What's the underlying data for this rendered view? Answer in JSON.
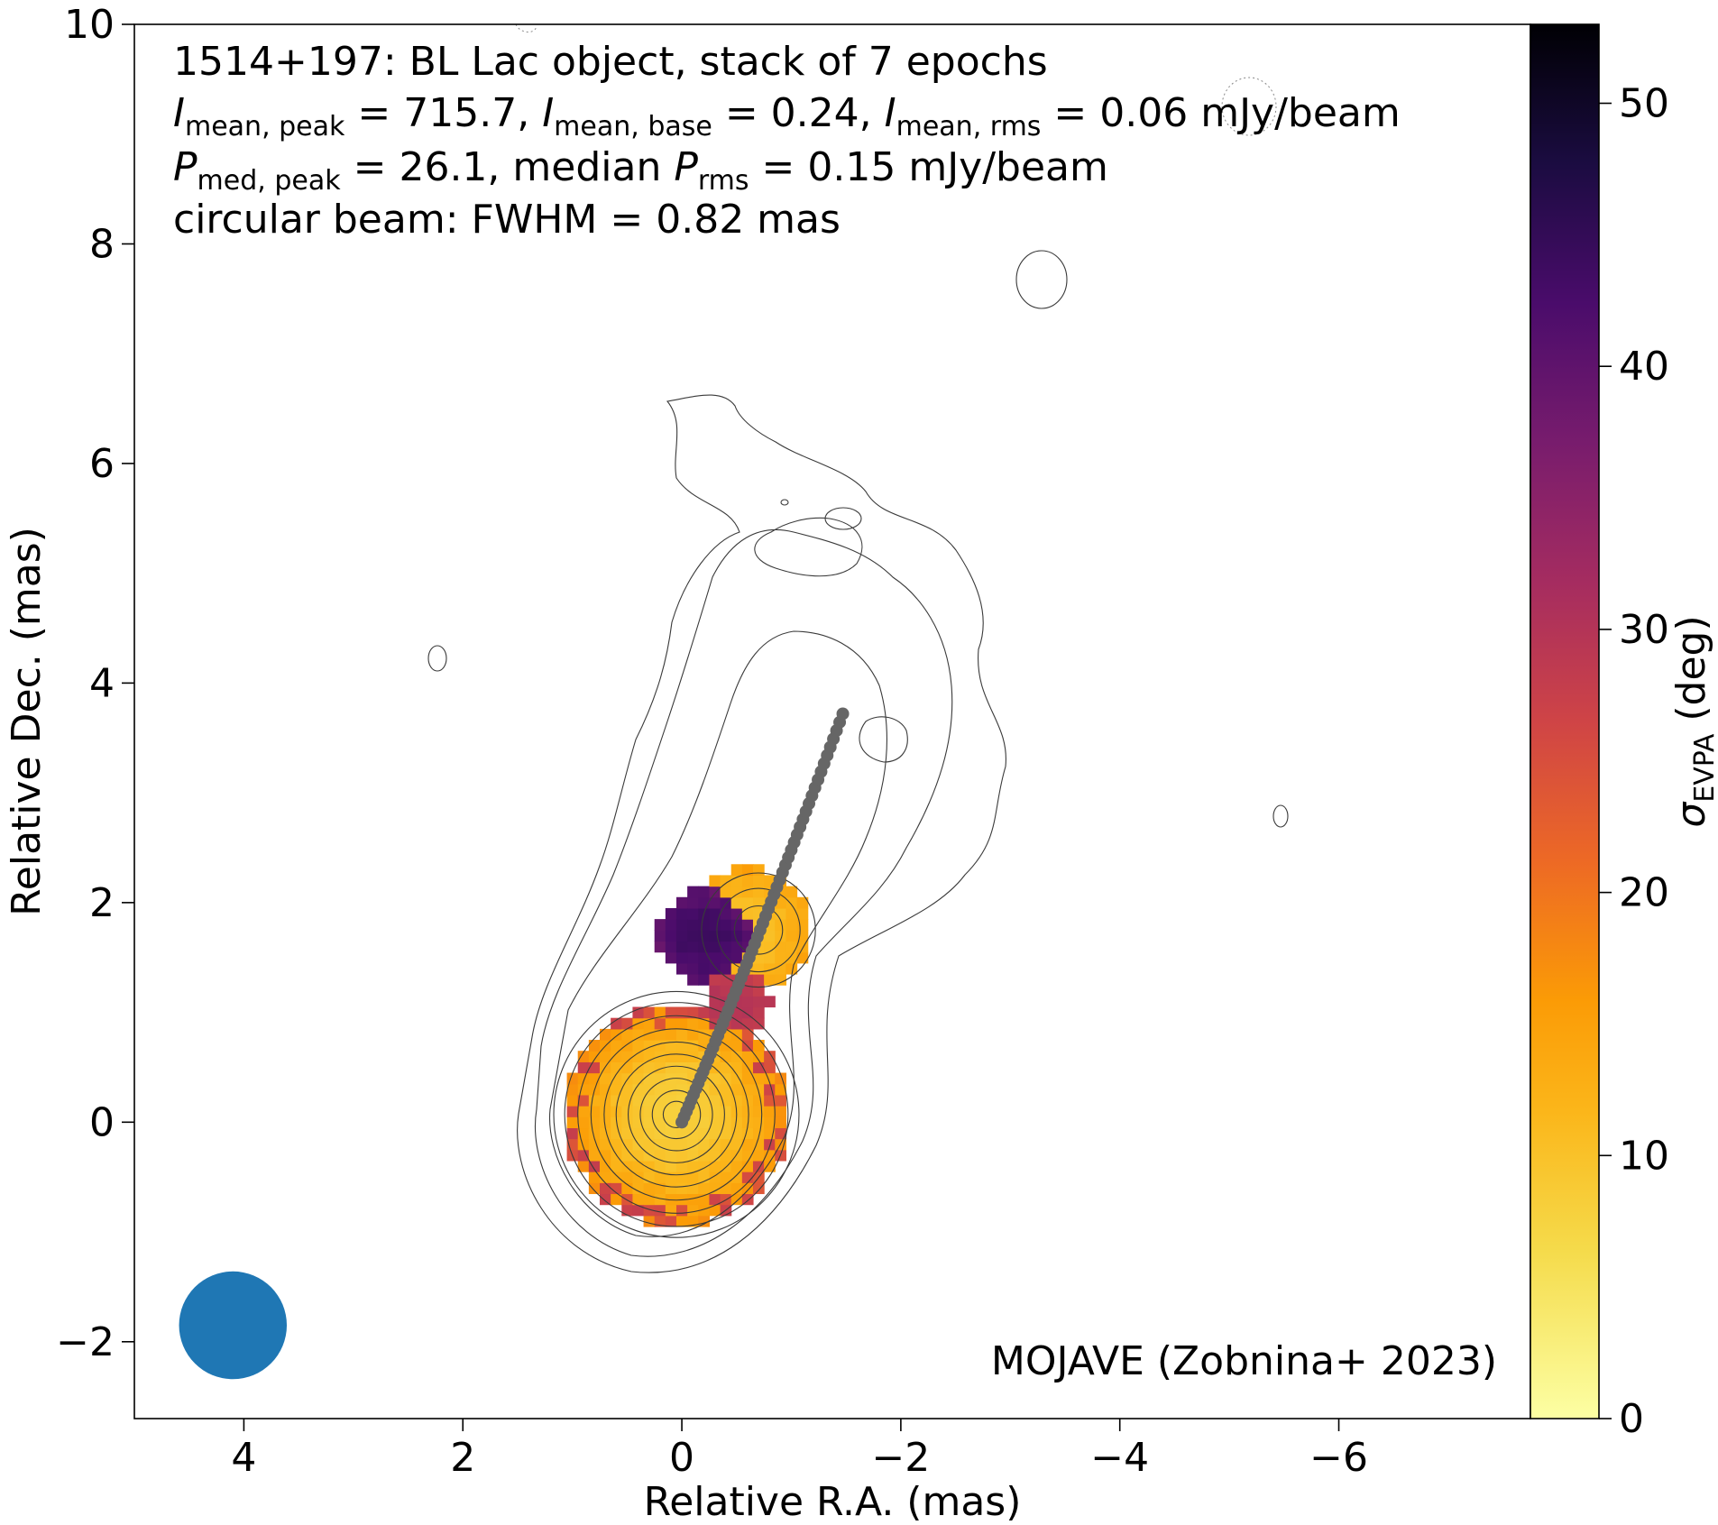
{
  "chart_data": {
    "type": "heatmap",
    "annotations": {
      "line1": "1514+197: BL Lac object, stack of 7 epochs",
      "line2": "I_mean,peak = 715.7, I_mean,base = 0.24, I_mean,rms = 0.06 mJy/beam",
      "line3": "P_med,peak = 26.1, median P_rms = 0.15 mJy/beam",
      "line4": "circular beam: FWHM = 0.82 mas",
      "credit": "MOJAVE (Zobnina+ 2023)"
    },
    "stats": {
      "I_mean_peak": 715.7,
      "I_mean_base": 0.24,
      "I_mean_rms": 0.06,
      "P_med_peak": 26.1,
      "median_P_rms": 0.15,
      "beam_fwhm_mas": 0.82,
      "units": "mJy/beam"
    },
    "xlabel": "Relative R.A. (mas)",
    "ylabel": "Relative Dec. (mas)",
    "xlim": [
      5,
      -7.75
    ],
    "ylim": [
      -2.7,
      10
    ],
    "xticks": [
      {
        "value": 4,
        "label": "4"
      },
      {
        "value": 2,
        "label": "2"
      },
      {
        "value": 0,
        "label": "0"
      },
      {
        "value": -2,
        "label": "−2"
      },
      {
        "value": -4,
        "label": "−4"
      },
      {
        "value": -6,
        "label": "−6"
      }
    ],
    "yticks": [
      {
        "value": -2,
        "label": "−2"
      },
      {
        "value": 0,
        "label": "0"
      },
      {
        "value": 2,
        "label": "2"
      },
      {
        "value": 4,
        "label": "4"
      },
      {
        "value": 6,
        "label": "6"
      },
      {
        "value": 8,
        "label": "8"
      },
      {
        "value": 10,
        "label": "10"
      }
    ],
    "colorbar": {
      "label": "σ_EVPA (deg)",
      "colormap": "inferno_r",
      "range": [
        0,
        53
      ],
      "ticks": [
        {
          "value": 0,
          "label": "0"
        },
        {
          "value": 10,
          "label": "10"
        },
        {
          "value": 20,
          "label": "20"
        },
        {
          "value": 30,
          "label": "30"
        },
        {
          "value": 40,
          "label": "40"
        },
        {
          "value": 50,
          "label": "50"
        }
      ]
    },
    "ridge_line": {
      "color": "#666666",
      "start": [
        0,
        0
      ],
      "end": [
        -1.47,
        3.72
      ],
      "control": [
        -0.62,
        1.45
      ],
      "n_points": 60
    },
    "beam": {
      "x": 4.1,
      "y": -1.85,
      "diameter_mas": 0.82,
      "color": "#1f77b4"
    },
    "evpa_error_regions": [
      {
        "name": "core",
        "x": 0.05,
        "y": 0.07,
        "r": 1.02,
        "center_deg": 8,
        "edge_deg": 18
      },
      {
        "name": "inner-jet",
        "x": -0.6,
        "y": 1.75,
        "r": 0.58,
        "center_deg": 10,
        "edge_deg": 15
      },
      {
        "name": "inner-jet-west",
        "x": -0.2,
        "y": 1.7,
        "r": 0.42,
        "center_deg": 44,
        "edge_deg": 40
      },
      {
        "name": "bridge",
        "x": -0.5,
        "y": 1.1,
        "r": 0.3,
        "center_deg": 30,
        "edge_deg": 28
      }
    ],
    "contours": {
      "core_levels_mas": [
        0.12,
        0.22,
        0.33,
        0.44,
        0.55,
        0.66,
        0.78,
        0.9,
        1.02,
        1.12
      ],
      "core_center": [
        0.05,
        0.07
      ],
      "inner_jet_center": [
        -0.7,
        1.75
      ],
      "inner_jet_levels_mas": [
        0.22,
        0.38,
        0.52
      ]
    }
  }
}
